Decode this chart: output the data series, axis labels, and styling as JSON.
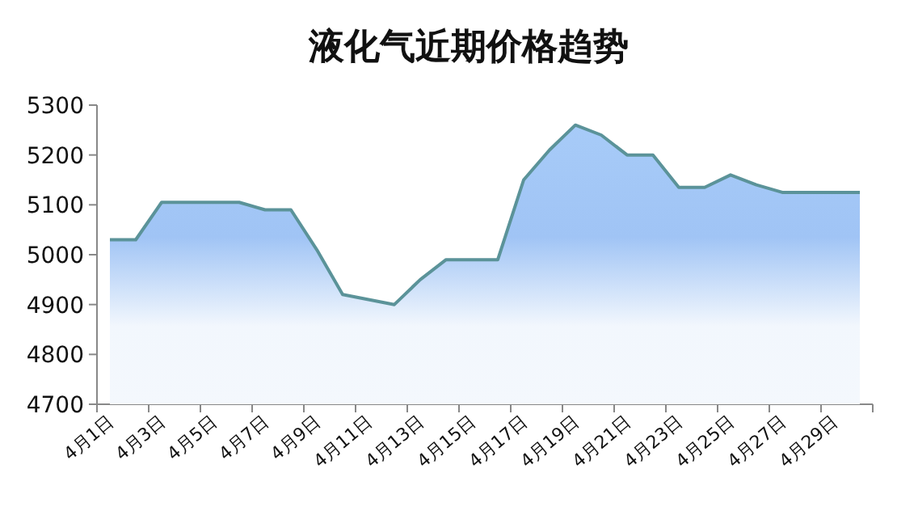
{
  "chart_data": {
    "type": "area",
    "title": "液化气近期价格趋势",
    "categories": [
      "4月1日",
      null,
      "4月3日",
      null,
      "4月5日",
      null,
      "4月7日",
      null,
      "4月9日",
      null,
      "4月11日",
      null,
      "4月13日",
      null,
      "4月15日",
      null,
      "4月17日",
      null,
      "4月19日",
      null,
      "4月21日",
      null,
      "4月23日",
      null,
      "4月25日",
      null,
      "4月27日",
      null,
      "4月29日",
      null
    ],
    "values": [
      5030,
      5030,
      5105,
      5105,
      5105,
      5105,
      5090,
      5090,
      5010,
      4920,
      4910,
      4900,
      4950,
      4990,
      4990,
      4990,
      5150,
      5210,
      5260,
      5240,
      5200,
      5200,
      5135,
      5135,
      5160,
      5140,
      5125,
      5125,
      5125,
      5125
    ],
    "color": "#5b9399",
    "ylim": [
      4700,
      5300
    ],
    "yticks": [
      4700,
      4800,
      4900,
      5000,
      5100,
      5200,
      5300
    ]
  }
}
